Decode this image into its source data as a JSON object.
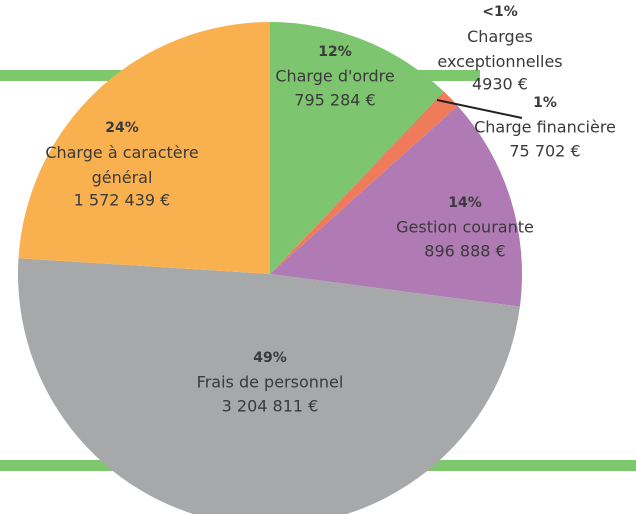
{
  "chart_data": {
    "type": "pie",
    "categories": [
      "Charge d'ordre",
      "Charges exceptionnelles",
      "Charge financière",
      "Gestion courante",
      "Frais de personnel",
      "Charge à caractère général"
    ],
    "values": [
      795284,
      4930,
      75702,
      896888,
      3204811,
      1572439
    ],
    "value_labels": [
      "795 284 €",
      "4930 €",
      "75 702 €",
      "896 888 €",
      "3 204 811 €",
      "1 572 439 €"
    ],
    "percent_labels": [
      "12%",
      "<1%",
      "1%",
      "14%",
      "49%",
      "24%"
    ],
    "colors": [
      "#7ec56f",
      "#e8664a",
      "#ef7b5a",
      "#b07ab5",
      "#a6a8a9",
      "#f9b150"
    ]
  }
}
